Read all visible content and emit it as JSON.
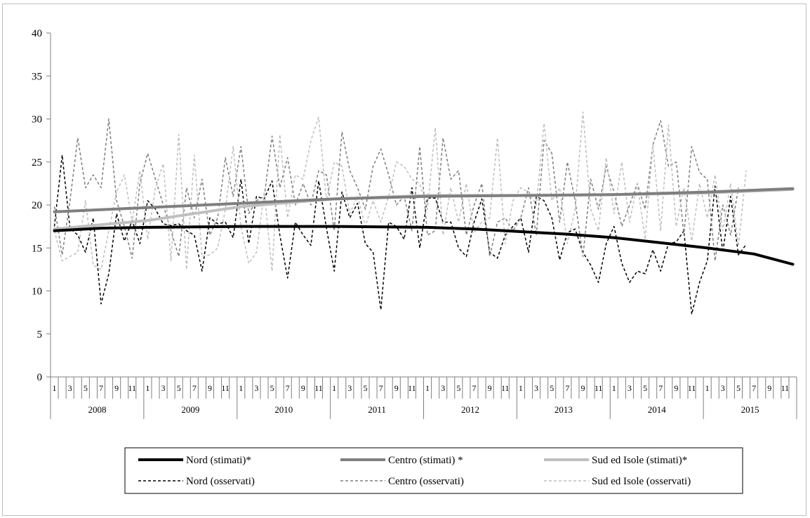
{
  "chart_data": {
    "type": "line",
    "title": "",
    "xlabel": "",
    "ylabel": "",
    "ylim": [
      0,
      40
    ],
    "y_ticks": [
      "0",
      "5",
      "10",
      "15",
      "20",
      "25",
      "30",
      "35",
      "40"
    ],
    "years": [
      "2008",
      "2009",
      "2010",
      "2011",
      "2012",
      "2013",
      "2014",
      "2015"
    ],
    "month_tick_labels": [
      "1",
      "3",
      "5",
      "7",
      "9",
      "11"
    ],
    "grid": false,
    "legend_position": "bottom",
    "x_unit": "month index (1 = Jan 2008, 96 = Dec 2015)",
    "series": [
      {
        "name": "Nord (stimati)*",
        "style": "solid",
        "color": "#000000",
        "width": 4,
        "points": [
          [
            1,
            17.0
          ],
          [
            7,
            17.3
          ],
          [
            13,
            17.4
          ],
          [
            25,
            17.5
          ],
          [
            37,
            17.5
          ],
          [
            49,
            17.4
          ],
          [
            55,
            17.2
          ],
          [
            61,
            16.9
          ],
          [
            67,
            16.6
          ],
          [
            73,
            16.2
          ],
          [
            79,
            15.6
          ],
          [
            85,
            15.0
          ],
          [
            91,
            14.3
          ],
          [
            96,
            13.1
          ]
        ]
      },
      {
        "name": "Centro (stimati) *",
        "style": "solid",
        "color": "#7f7f7f",
        "width": 4,
        "points": [
          [
            1,
            19.2
          ],
          [
            13,
            19.7
          ],
          [
            25,
            20.2
          ],
          [
            37,
            20.7
          ],
          [
            49,
            21.0
          ],
          [
            61,
            21.1
          ],
          [
            73,
            21.2
          ],
          [
            85,
            21.5
          ],
          [
            96,
            21.9
          ]
        ]
      },
      {
        "name": "Sud ed Isole (stimati)*",
        "style": "solid",
        "color": "#bfbfbf",
        "width": 4,
        "points": [
          [
            1,
            17.2
          ],
          [
            13,
            18.2
          ],
          [
            19,
            19.0
          ],
          [
            25,
            19.8
          ],
          [
            37,
            20.7
          ],
          [
            49,
            21.1
          ],
          [
            61,
            21.1
          ],
          [
            73,
            21.2
          ],
          [
            85,
            21.4
          ],
          [
            96,
            21.8
          ]
        ]
      },
      {
        "name": "Nord (osservati)",
        "style": "dashed",
        "color": "#000000",
        "width": 1.5,
        "points": [
          [
            1,
            17.5
          ],
          [
            2,
            25.8
          ],
          [
            3,
            17.3
          ],
          [
            4,
            16.5
          ],
          [
            5,
            14.5
          ],
          [
            6,
            18.5
          ],
          [
            7,
            8.5
          ],
          [
            8,
            12.0
          ],
          [
            9,
            19.0
          ],
          [
            10,
            15.8
          ],
          [
            11,
            18.2
          ],
          [
            12,
            15.5
          ],
          [
            13,
            20.5
          ],
          [
            14,
            19.5
          ],
          [
            15,
            17.8
          ],
          [
            16,
            17.6
          ],
          [
            17,
            17.8
          ],
          [
            18,
            17.0
          ],
          [
            19,
            16.5
          ],
          [
            20,
            12.3
          ],
          [
            21,
            18.5
          ],
          [
            22,
            17.8
          ],
          [
            23,
            18.0
          ],
          [
            24,
            16.2
          ],
          [
            25,
            23.0
          ],
          [
            26,
            15.5
          ],
          [
            27,
            21.0
          ],
          [
            28,
            20.7
          ],
          [
            29,
            22.8
          ],
          [
            30,
            16.5
          ],
          [
            31,
            11.5
          ],
          [
            32,
            18.0
          ],
          [
            33,
            16.5
          ],
          [
            34,
            15.3
          ],
          [
            35,
            22.8
          ],
          [
            36,
            17.3
          ],
          [
            37,
            12.3
          ],
          [
            38,
            21.5
          ],
          [
            39,
            18.5
          ],
          [
            40,
            20.2
          ],
          [
            41,
            15.5
          ],
          [
            42,
            14.5
          ],
          [
            43,
            7.8
          ],
          [
            44,
            18.0
          ],
          [
            45,
            17.5
          ],
          [
            46,
            16.0
          ],
          [
            47,
            22.0
          ],
          [
            48,
            15.0
          ],
          [
            49,
            20.8
          ],
          [
            50,
            20.8
          ],
          [
            51,
            18.0
          ],
          [
            52,
            18.0
          ],
          [
            53,
            15.0
          ],
          [
            54,
            14.0
          ],
          [
            55,
            18.0
          ],
          [
            56,
            20.7
          ],
          [
            57,
            14.5
          ],
          [
            58,
            13.8
          ],
          [
            59,
            16.5
          ],
          [
            60,
            17.5
          ],
          [
            61,
            18.5
          ],
          [
            62,
            14.5
          ],
          [
            63,
            21.0
          ],
          [
            64,
            20.5
          ],
          [
            65,
            18.5
          ],
          [
            66,
            13.6
          ],
          [
            67,
            16.8
          ],
          [
            68,
            17.2
          ],
          [
            69,
            14.5
          ],
          [
            70,
            13.0
          ],
          [
            71,
            11.0
          ],
          [
            72,
            15.5
          ],
          [
            73,
            17.5
          ],
          [
            74,
            13.2
          ],
          [
            75,
            11.0
          ],
          [
            76,
            12.3
          ],
          [
            77,
            12.0
          ],
          [
            78,
            14.8
          ],
          [
            79,
            12.3
          ],
          [
            80,
            15.5
          ],
          [
            81,
            15.7
          ],
          [
            82,
            17.0
          ],
          [
            83,
            7.3
          ],
          [
            84,
            11.0
          ],
          [
            85,
            13.5
          ],
          [
            86,
            22.2
          ],
          [
            87,
            14.5
          ],
          [
            88,
            21.0
          ],
          [
            89,
            14.2
          ],
          [
            90,
            15.4
          ]
        ]
      },
      {
        "name": "Centro (osservati)",
        "style": "dashed",
        "color": "#7f7f7f",
        "width": 1.5,
        "points": [
          [
            1,
            19.8
          ],
          [
            2,
            14.2
          ],
          [
            3,
            20.5
          ],
          [
            4,
            27.8
          ],
          [
            5,
            22.0
          ],
          [
            6,
            23.5
          ],
          [
            7,
            22.0
          ],
          [
            8,
            30.0
          ],
          [
            9,
            20.5
          ],
          [
            10,
            17.5
          ],
          [
            11,
            13.8
          ],
          [
            12,
            22.5
          ],
          [
            13,
            26.0
          ],
          [
            14,
            23.0
          ],
          [
            15,
            20.0
          ],
          [
            16,
            17.0
          ],
          [
            17,
            14.0
          ],
          [
            18,
            22.0
          ],
          [
            19,
            18.5
          ],
          [
            20,
            23.0
          ],
          [
            21,
            16.5
          ],
          [
            22,
            18.5
          ],
          [
            23,
            25.5
          ],
          [
            24,
            21.0
          ],
          [
            25,
            26.8
          ],
          [
            26,
            19.0
          ],
          [
            27,
            20.5
          ],
          [
            28,
            21.0
          ],
          [
            29,
            28.0
          ],
          [
            30,
            22.0
          ],
          [
            31,
            25.5
          ],
          [
            32,
            20.0
          ],
          [
            33,
            22.5
          ],
          [
            34,
            20.0
          ],
          [
            35,
            24.0
          ],
          [
            36,
            23.5
          ],
          [
            37,
            17.0
          ],
          [
            38,
            28.5
          ],
          [
            39,
            24.0
          ],
          [
            40,
            22.0
          ],
          [
            41,
            19.5
          ],
          [
            42,
            24.5
          ],
          [
            43,
            26.5
          ],
          [
            44,
            23.5
          ],
          [
            45,
            20.0
          ],
          [
            46,
            21.0
          ],
          [
            47,
            17.0
          ],
          [
            48,
            26.8
          ],
          [
            49,
            16.5
          ],
          [
            50,
            17.0
          ],
          [
            51,
            27.8
          ],
          [
            52,
            23.0
          ],
          [
            53,
            24.0
          ],
          [
            54,
            16.5
          ],
          [
            55,
            20.0
          ],
          [
            56,
            22.5
          ],
          [
            57,
            14.0
          ],
          [
            58,
            18.0
          ],
          [
            59,
            18.5
          ],
          [
            60,
            17.0
          ],
          [
            61,
            18.5
          ],
          [
            62,
            22.0
          ],
          [
            63,
            16.5
          ],
          [
            64,
            27.5
          ],
          [
            65,
            26.0
          ],
          [
            66,
            18.0
          ],
          [
            67,
            25.0
          ],
          [
            68,
            20.5
          ],
          [
            69,
            14.0
          ],
          [
            70,
            23.0
          ],
          [
            71,
            19.5
          ],
          [
            72,
            24.5
          ],
          [
            73,
            21.5
          ],
          [
            74,
            17.5
          ],
          [
            75,
            20.0
          ],
          [
            76,
            22.5
          ],
          [
            77,
            19.5
          ],
          [
            78,
            27.0
          ],
          [
            79,
            29.8
          ],
          [
            80,
            24.5
          ],
          [
            81,
            25.0
          ],
          [
            82,
            16.5
          ],
          [
            83,
            26.8
          ],
          [
            84,
            23.8
          ],
          [
            85,
            23.0
          ],
          [
            86,
            13.5
          ],
          [
            87,
            20.0
          ],
          [
            88,
            16.5
          ],
          [
            89,
            22.0
          ]
        ]
      },
      {
        "name": "Sud ed Isole (osservati)",
        "style": "dashed",
        "color": "#bfbfbf",
        "width": 1.5,
        "points": [
          [
            1,
            17.0
          ],
          [
            2,
            13.5
          ],
          [
            3,
            14.0
          ],
          [
            4,
            14.5
          ],
          [
            5,
            20.5
          ],
          [
            6,
            13.0
          ],
          [
            7,
            12.5
          ],
          [
            8,
            17.0
          ],
          [
            9,
            21.5
          ],
          [
            10,
            23.5
          ],
          [
            11,
            18.0
          ],
          [
            12,
            24.0
          ],
          [
            13,
            16.0
          ],
          [
            14,
            22.0
          ],
          [
            15,
            24.8
          ],
          [
            16,
            13.5
          ],
          [
            17,
            28.2
          ],
          [
            18,
            12.5
          ],
          [
            19,
            25.8
          ],
          [
            20,
            14.0
          ],
          [
            21,
            14.2
          ],
          [
            22,
            15.0
          ],
          [
            23,
            19.5
          ],
          [
            24,
            26.8
          ],
          [
            25,
            17.5
          ],
          [
            26,
            13.2
          ],
          [
            27,
            14.5
          ],
          [
            28,
            21.5
          ],
          [
            29,
            12.3
          ],
          [
            30,
            28.2
          ],
          [
            31,
            18.5
          ],
          [
            32,
            23.5
          ],
          [
            33,
            23.0
          ],
          [
            34,
            27.5
          ],
          [
            35,
            30.2
          ],
          [
            36,
            20.5
          ],
          [
            37,
            25.0
          ],
          [
            38,
            24.5
          ],
          [
            39,
            19.0
          ],
          [
            40,
            21.0
          ],
          [
            41,
            17.5
          ],
          [
            42,
            20.5
          ],
          [
            43,
            18.0
          ],
          [
            44,
            21.0
          ],
          [
            45,
            25.0
          ],
          [
            46,
            24.5
          ],
          [
            47,
            23.0
          ],
          [
            48,
            22.5
          ],
          [
            49,
            19.5
          ],
          [
            50,
            29.0
          ],
          [
            51,
            16.5
          ],
          [
            52,
            22.0
          ],
          [
            53,
            18.0
          ],
          [
            54,
            22.5
          ],
          [
            55,
            16.8
          ],
          [
            56,
            18.0
          ],
          [
            57,
            18.5
          ],
          [
            58,
            27.8
          ],
          [
            59,
            15.5
          ],
          [
            60,
            20.5
          ],
          [
            61,
            22.0
          ],
          [
            62,
            21.5
          ],
          [
            63,
            20.0
          ],
          [
            64,
            29.5
          ],
          [
            65,
            20.5
          ],
          [
            66,
            22.0
          ],
          [
            67,
            15.5
          ],
          [
            68,
            19.5
          ],
          [
            69,
            30.8
          ],
          [
            70,
            19.5
          ],
          [
            71,
            17.0
          ],
          [
            72,
            25.5
          ],
          [
            73,
            19.0
          ],
          [
            74,
            25.0
          ],
          [
            75,
            18.0
          ],
          [
            76,
            22.5
          ],
          [
            77,
            16.0
          ],
          [
            78,
            27.0
          ],
          [
            79,
            17.0
          ],
          [
            80,
            29.3
          ],
          [
            81,
            17.5
          ],
          [
            82,
            22.0
          ],
          [
            83,
            15.8
          ],
          [
            84,
            22.5
          ],
          [
            85,
            18.5
          ],
          [
            86,
            23.5
          ],
          [
            87,
            17.0
          ],
          [
            88,
            22.5
          ],
          [
            89,
            15.2
          ],
          [
            90,
            24.0
          ]
        ]
      }
    ]
  }
}
